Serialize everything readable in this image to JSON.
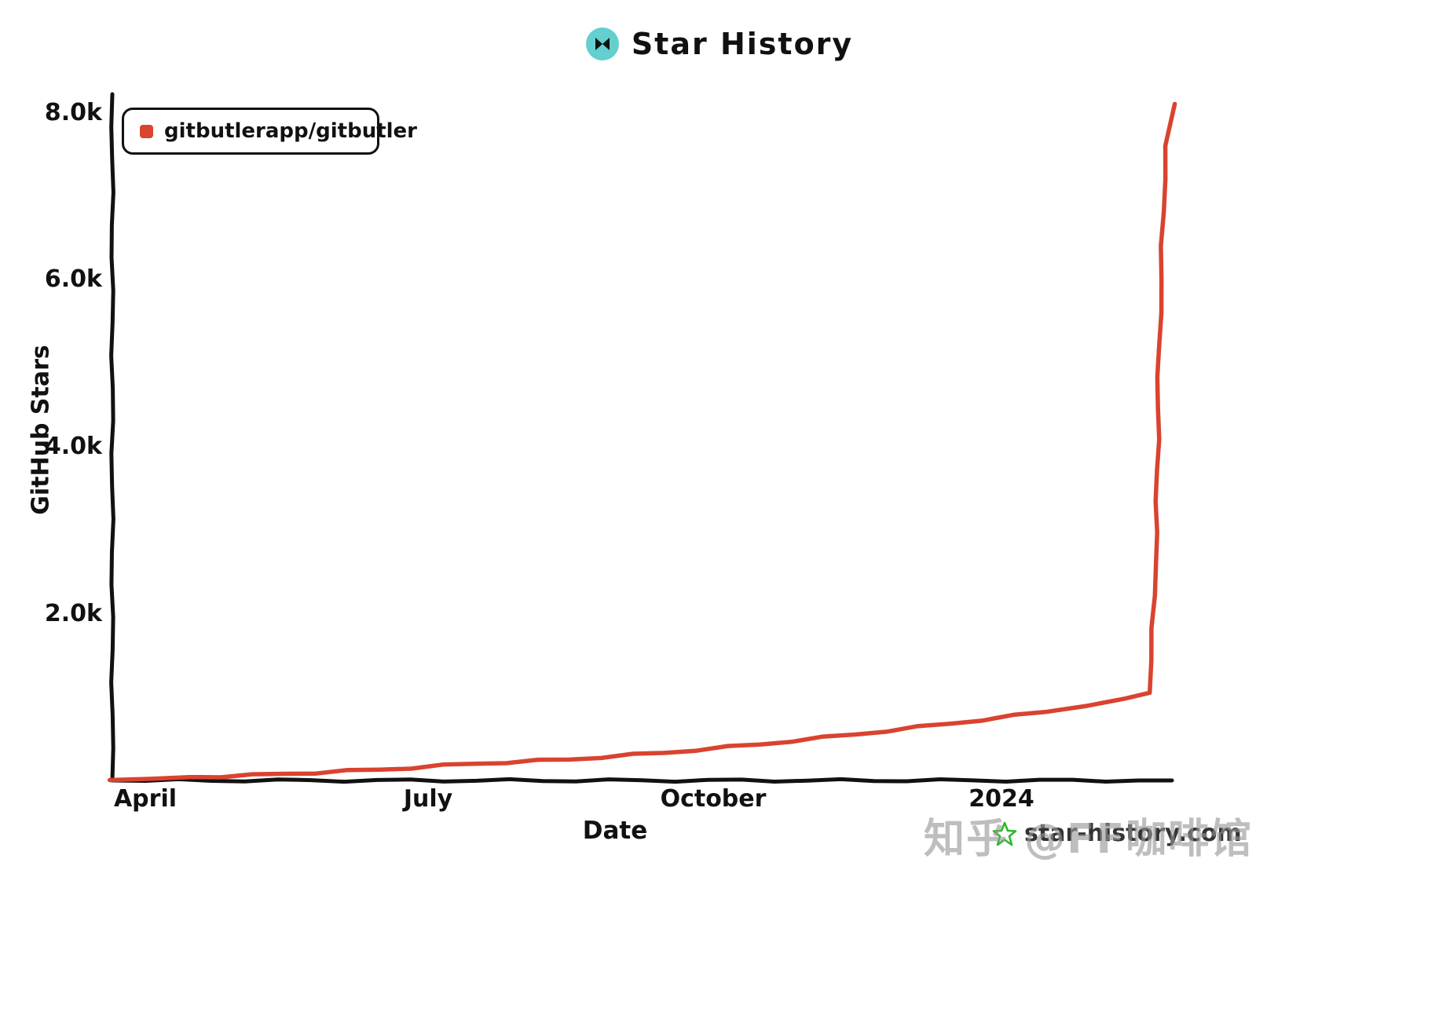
{
  "header": {
    "title": "Star History"
  },
  "legend": {
    "series_label": "gitbutlerapp/gitbutler"
  },
  "axes": {
    "y_label": "GitHub Stars",
    "y_ticks": [
      "8.0k",
      "6.0k",
      "4.0k",
      "2.0k"
    ],
    "x_ticks": [
      "April",
      "July",
      "October",
      "2024"
    ],
    "x_label": "Date"
  },
  "watermark": {
    "site": "star-history.com",
    "overlay": "知乎 @FF咖啡馆"
  },
  "colors": {
    "series": "#d9432f",
    "logo_bg": "#63cfcf",
    "logo_glyph": "#111111",
    "star": "#2db92d",
    "axis": "#111111"
  },
  "chart_data": {
    "type": "line",
    "title": "Star History",
    "xlabel": "Date",
    "ylabel": "GitHub Stars",
    "ylim": [
      0,
      8200
    ],
    "x_tick_labels": [
      "April",
      "July",
      "October",
      "2024"
    ],
    "y_tick_values": [
      2000,
      4000,
      6000,
      8000
    ],
    "legend_position": "top-left",
    "grid": false,
    "series": [
      {
        "name": "gitbutlerapp/gitbutler",
        "color": "#d9432f",
        "points": [
          [
            "2023-03-20",
            5
          ],
          [
            "2023-04-15",
            40
          ],
          [
            "2023-05-15",
            80
          ],
          [
            "2023-06-15",
            130
          ],
          [
            "2023-07-15",
            200
          ],
          [
            "2023-08-15",
            250
          ],
          [
            "2023-09-15",
            330
          ],
          [
            "2023-10-15",
            430
          ],
          [
            "2023-11-15",
            550
          ],
          [
            "2023-12-15",
            680
          ],
          [
            "2024-01-15",
            820
          ],
          [
            "2024-02-10",
            980
          ],
          [
            "2024-02-18",
            1050
          ],
          [
            "2024-02-20",
            2600
          ],
          [
            "2024-02-21",
            5200
          ],
          [
            "2024-02-23",
            7600
          ],
          [
            "2024-02-26",
            8100
          ]
        ]
      }
    ]
  }
}
